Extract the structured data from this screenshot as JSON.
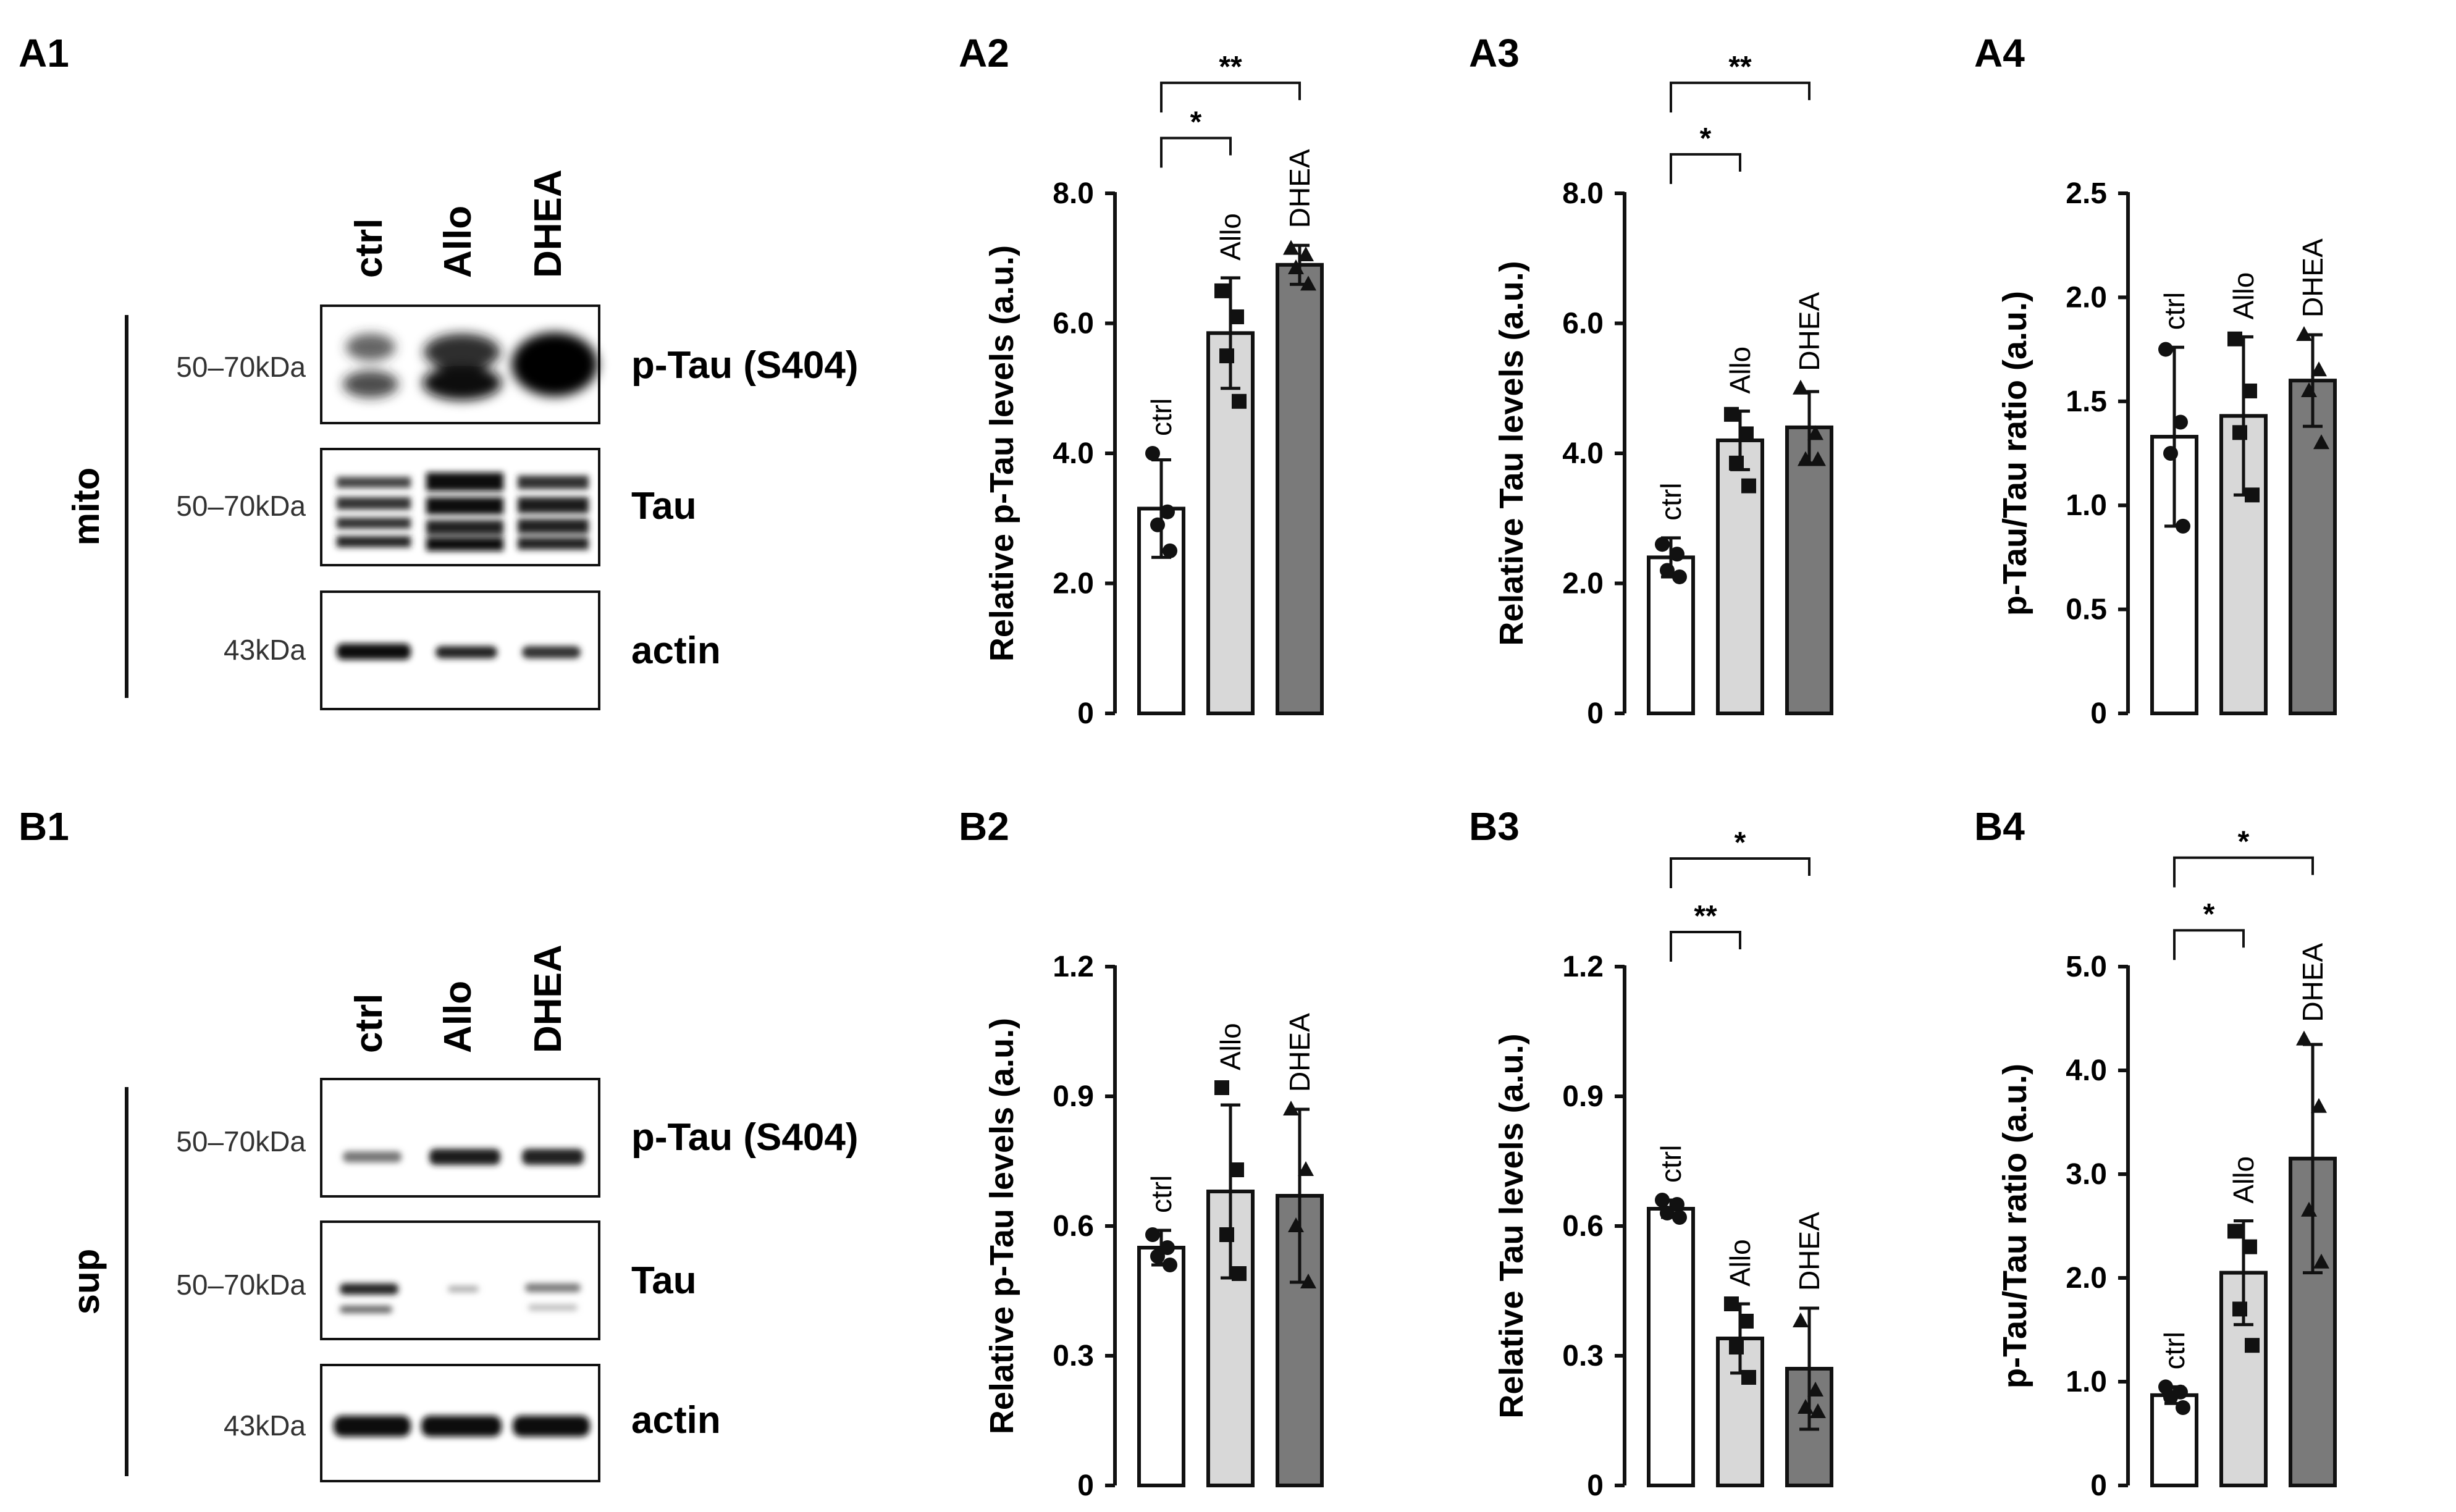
{
  "panels": {
    "A1": "A1",
    "A2": "A2",
    "A3": "A3",
    "A4": "A4",
    "B1": "B1",
    "B2": "B2",
    "B3": "B3",
    "B4": "B4"
  },
  "blots": [
    {
      "id": "A1",
      "fraction_label": "mito",
      "lane_labels": [
        "ctrl",
        "Allo",
        "DHEA"
      ],
      "rows": [
        {
          "mw": "50–70kDa",
          "protein": "p-Tau (S404)"
        },
        {
          "mw": "50–70kDa",
          "protein": "Tau"
        },
        {
          "mw": "43kDa",
          "protein": "actin"
        }
      ]
    },
    {
      "id": "B1",
      "fraction_label": "sup",
      "lane_labels": [
        "ctrl",
        "Allo",
        "DHEA"
      ],
      "rows": [
        {
          "mw": "50–70kDa",
          "protein": "p-Tau (S404)"
        },
        {
          "mw": "50–70kDa",
          "protein": "Tau"
        },
        {
          "mw": "43kDa",
          "protein": "actin"
        }
      ]
    }
  ],
  "colors": {
    "ctrl": "#ffffff",
    "Allo": "#d8d8d8",
    "DHEA": "#7a7a7a",
    "axis": "#111111"
  },
  "chart_data": [
    {
      "id": "A2",
      "type": "bar",
      "ylabel": "Relative p-Tau levels (a.u.)",
      "ylim": [
        0,
        8
      ],
      "yticks": [
        0,
        2,
        4,
        6,
        8
      ],
      "yticklabels": [
        "0",
        "2.0",
        "4.0",
        "6.0",
        "8.0"
      ],
      "categories": [
        "ctrl",
        "Allo",
        "DHEA"
      ],
      "values": [
        3.15,
        5.85,
        6.9
      ],
      "errors": [
        0.75,
        0.85,
        0.3
      ],
      "points": [
        [
          4.0,
          3.1,
          2.9,
          2.5
        ],
        [
          6.5,
          6.1,
          5.5,
          4.8
        ],
        [
          7.15,
          7.05,
          6.85,
          6.6
        ]
      ],
      "markers": [
        "circle",
        "square",
        "triangle"
      ],
      "significance": [
        {
          "from": 0,
          "to": 1,
          "label": "*",
          "level": 8.85
        },
        {
          "from": 0,
          "to": 2,
          "label": "**",
          "level": 9.7
        }
      ]
    },
    {
      "id": "A3",
      "type": "bar",
      "ylabel": "Relative Tau levels (a.u.)",
      "ylim": [
        0,
        8
      ],
      "yticks": [
        0,
        2,
        4,
        6,
        8
      ],
      "yticklabels": [
        "0",
        "2.0",
        "4.0",
        "6.0",
        "8.0"
      ],
      "categories": [
        "ctrl",
        "Allo",
        "DHEA"
      ],
      "values": [
        2.4,
        4.2,
        4.4
      ],
      "errors": [
        0.3,
        0.45,
        0.55
      ],
      "points": [
        [
          2.6,
          2.45,
          2.2,
          2.1
        ],
        [
          4.6,
          4.3,
          3.85,
          3.5
        ],
        [
          5.0,
          4.3,
          3.9,
          3.9
        ]
      ],
      "markers": [
        "circle",
        "square",
        "triangle"
      ],
      "significance": [
        {
          "from": 0,
          "to": 1,
          "label": "*",
          "level": 8.6
        },
        {
          "from": 0,
          "to": 2,
          "label": "**",
          "level": 9.7
        }
      ]
    },
    {
      "id": "A4",
      "type": "bar",
      "ylabel": "p-Tau/Tau ratio (a.u.)",
      "ylim": [
        0,
        2.5
      ],
      "yticks": [
        0,
        0.5,
        1.0,
        1.5,
        2.0,
        2.5
      ],
      "yticklabels": [
        "0",
        "0.5",
        "1.0",
        "1.5",
        "2.0",
        "2.5"
      ],
      "categories": [
        "ctrl",
        "Allo",
        "DHEA"
      ],
      "values": [
        1.33,
        1.43,
        1.6
      ],
      "errors": [
        0.43,
        0.38,
        0.22
      ],
      "points": [
        [
          1.75,
          1.4,
          1.25,
          0.9
        ],
        [
          1.8,
          1.55,
          1.35,
          1.05
        ],
        [
          1.82,
          1.65,
          1.55,
          1.3
        ]
      ],
      "markers": [
        "circle",
        "square",
        "triangle"
      ],
      "significance": []
    },
    {
      "id": "B2",
      "type": "bar",
      "ylabel": "Relative p-Tau levels (a.u.)",
      "ylim": [
        0,
        1.2
      ],
      "yticks": [
        0,
        0.3,
        0.6,
        0.9,
        1.2
      ],
      "yticklabels": [
        "0",
        "0.3",
        "0.6",
        "0.9",
        "1.2"
      ],
      "categories": [
        "ctrl",
        "Allo",
        "DHEA"
      ],
      "values": [
        0.55,
        0.68,
        0.67
      ],
      "errors": [
        0.04,
        0.2,
        0.2
      ],
      "points": [
        [
          0.58,
          0.55,
          0.53,
          0.51
        ],
        [
          0.92,
          0.73,
          0.58,
          0.49
        ],
        [
          0.87,
          0.73,
          0.6,
          0.47
        ]
      ],
      "markers": [
        "circle",
        "square",
        "triangle"
      ],
      "significance": []
    },
    {
      "id": "B3",
      "type": "bar",
      "ylabel": "Relative Tau levels (a.u.)",
      "ylim": [
        0,
        1.2
      ],
      "yticks": [
        0,
        0.3,
        0.6,
        0.9,
        1.2
      ],
      "yticklabels": [
        "0",
        "0.3",
        "0.6",
        "0.9",
        "1.2"
      ],
      "categories": [
        "ctrl",
        "Allo",
        "DHEA"
      ],
      "values": [
        0.64,
        0.34,
        0.27
      ],
      "errors": [
        0.02,
        0.08,
        0.14
      ],
      "points": [
        [
          0.66,
          0.65,
          0.63,
          0.62
        ],
        [
          0.42,
          0.38,
          0.32,
          0.25
        ],
        [
          0.38,
          0.22,
          0.18,
          0.17
        ]
      ],
      "markers": [
        "circle",
        "square",
        "triangle"
      ],
      "significance": [
        {
          "from": 0,
          "to": 1,
          "label": "**",
          "level": 1.28
        },
        {
          "from": 0,
          "to": 2,
          "label": "*",
          "level": 1.45
        }
      ]
    },
    {
      "id": "B4",
      "type": "bar",
      "ylabel": "p-Tau/Tau ratio (a.u.)",
      "ylim": [
        0,
        5
      ],
      "yticks": [
        0,
        1,
        2,
        3,
        4,
        5
      ],
      "yticklabels": [
        "0",
        "1.0",
        "2.0",
        "3.0",
        "4.0",
        "5.0"
      ],
      "categories": [
        "ctrl",
        "Allo",
        "DHEA"
      ],
      "values": [
        0.87,
        2.05,
        3.15
      ],
      "errors": [
        0.08,
        0.5,
        1.1
      ],
      "points": [
        [
          0.95,
          0.9,
          0.85,
          0.75
        ],
        [
          2.45,
          2.3,
          1.7,
          1.35
        ],
        [
          4.3,
          3.65,
          2.65,
          2.15
        ]
      ],
      "markers": [
        "circle",
        "square",
        "triangle"
      ],
      "significance": [
        {
          "from": 0,
          "to": 1,
          "label": "*",
          "level": 5.35
        },
        {
          "from": 0,
          "to": 2,
          "label": "*",
          "level": 6.05
        }
      ]
    }
  ]
}
